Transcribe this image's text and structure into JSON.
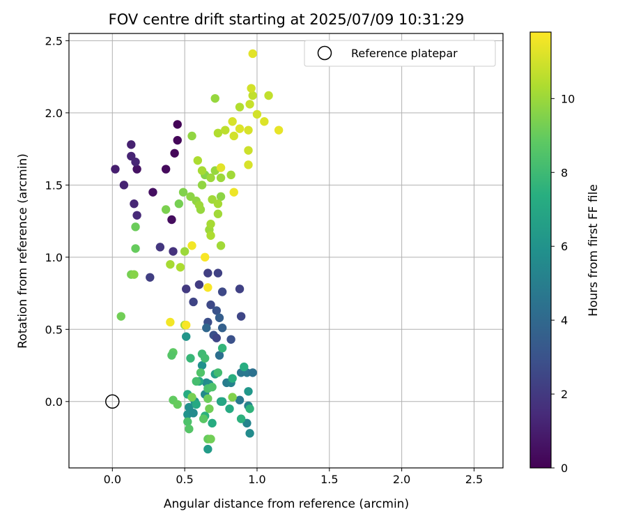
{
  "chart_data": {
    "type": "scatter",
    "title": "FOV centre drift starting at 2025/07/09 10:31:29",
    "xlabel": "Angular distance from reference (arcmin)",
    "ylabel": "Rotation from reference (arcmin)",
    "xlim": [
      -0.3,
      2.7
    ],
    "ylim": [
      -0.46,
      2.55
    ],
    "xticks": [
      "0.0",
      "0.5",
      "1.0",
      "1.5",
      "2.0",
      "2.5"
    ],
    "yticks": [
      "0.0",
      "0.5",
      "1.0",
      "1.5",
      "2.0",
      "2.5"
    ],
    "grid": true,
    "colormap": "viridis",
    "colorbar": {
      "label": "Hours from first FF file",
      "range": [
        0,
        11.8
      ],
      "ticks": [
        "0",
        "2",
        "4",
        "6",
        "8",
        "10"
      ]
    },
    "legend": {
      "placement": "top-right",
      "entries": [
        "Reference platepar"
      ]
    },
    "reference_point": {
      "x": 0.0,
      "y": 0.0
    },
    "points": [
      {
        "x": 0.45,
        "y": 1.92,
        "c": 0.1
      },
      {
        "x": 0.43,
        "y": 1.72,
        "c": 0.2
      },
      {
        "x": 0.45,
        "y": 1.81,
        "c": 0.2
      },
      {
        "x": 0.37,
        "y": 1.61,
        "c": 0.3
      },
      {
        "x": 0.28,
        "y": 1.45,
        "c": 0.5
      },
      {
        "x": 0.17,
        "y": 1.61,
        "c": 0.6
      },
      {
        "x": 0.41,
        "y": 1.26,
        "c": 0.4
      },
      {
        "x": 0.02,
        "y": 1.61,
        "c": 1.0
      },
      {
        "x": 0.13,
        "y": 1.78,
        "c": 1.1
      },
      {
        "x": 0.13,
        "y": 1.7,
        "c": 1.2
      },
      {
        "x": 0.16,
        "y": 1.66,
        "c": 1.3
      },
      {
        "x": 0.08,
        "y": 1.5,
        "c": 1.2
      },
      {
        "x": 0.15,
        "y": 1.37,
        "c": 1.3
      },
      {
        "x": 0.17,
        "y": 1.29,
        "c": 1.4
      },
      {
        "x": 0.33,
        "y": 1.07,
        "c": 1.9
      },
      {
        "x": 0.42,
        "y": 1.04,
        "c": 1.7
      },
      {
        "x": 0.26,
        "y": 0.86,
        "c": 2.2
      },
      {
        "x": 0.51,
        "y": 0.78,
        "c": 2.0
      },
      {
        "x": 0.6,
        "y": 0.81,
        "c": 2.1
      },
      {
        "x": 0.56,
        "y": 0.69,
        "c": 2.4
      },
      {
        "x": 0.66,
        "y": 0.89,
        "c": 2.2
      },
      {
        "x": 0.73,
        "y": 0.89,
        "c": 2.3
      },
      {
        "x": 0.88,
        "y": 0.78,
        "c": 2.3
      },
      {
        "x": 0.76,
        "y": 0.76,
        "c": 2.6
      },
      {
        "x": 0.89,
        "y": 0.59,
        "c": 2.5
      },
      {
        "x": 0.68,
        "y": 0.67,
        "c": 2.6
      },
      {
        "x": 0.66,
        "y": 0.55,
        "c": 2.8
      },
      {
        "x": 0.72,
        "y": 0.63,
        "c": 3.0
      },
      {
        "x": 0.7,
        "y": 0.46,
        "c": 2.9
      },
      {
        "x": 0.72,
        "y": 0.44,
        "c": 2.5
      },
      {
        "x": 0.82,
        "y": 0.43,
        "c": 2.9
      },
      {
        "x": 0.74,
        "y": 0.58,
        "c": 3.5
      },
      {
        "x": 0.76,
        "y": 0.51,
        "c": 3.6
      },
      {
        "x": 0.65,
        "y": 0.51,
        "c": 3.9
      },
      {
        "x": 0.74,
        "y": 0.32,
        "c": 4.3
      },
      {
        "x": 0.89,
        "y": 0.2,
        "c": 4.6
      },
      {
        "x": 0.93,
        "y": 0.2,
        "c": 4.7
      },
      {
        "x": 0.97,
        "y": 0.2,
        "c": 4.4
      },
      {
        "x": 0.79,
        "y": 0.13,
        "c": 4.9
      },
      {
        "x": 0.82,
        "y": 0.13,
        "c": 5.2
      },
      {
        "x": 0.88,
        "y": 0.01,
        "c": 4.7
      },
      {
        "x": 0.94,
        "y": -0.03,
        "c": 5.2
      },
      {
        "x": 0.93,
        "y": -0.15,
        "c": 5.3
      },
      {
        "x": 0.95,
        "y": -0.22,
        "c": 5.6
      },
      {
        "x": 0.65,
        "y": 0.13,
        "c": 5.5
      },
      {
        "x": 0.67,
        "y": 0.12,
        "c": 5.7
      },
      {
        "x": 0.64,
        "y": 0.05,
        "c": 5.6
      },
      {
        "x": 0.62,
        "y": 0.25,
        "c": 5.9
      },
      {
        "x": 0.53,
        "y": -0.04,
        "c": 5.8
      },
      {
        "x": 0.52,
        "y": -0.09,
        "c": 6.0
      },
      {
        "x": 0.56,
        "y": -0.08,
        "c": 5.6
      },
      {
        "x": 0.57,
        "y": 0.0,
        "c": 5.9
      },
      {
        "x": 0.51,
        "y": 0.45,
        "c": 6.1
      },
      {
        "x": 0.94,
        "y": 0.07,
        "c": 6.2
      },
      {
        "x": 0.66,
        "y": -0.33,
        "c": 6.4
      },
      {
        "x": 0.71,
        "y": 0.19,
        "c": 6.5
      },
      {
        "x": 0.75,
        "y": 0.0,
        "c": 6.7
      },
      {
        "x": 0.76,
        "y": 0.0,
        "c": 6.9
      },
      {
        "x": 0.6,
        "y": 0.14,
        "c": 7.0
      },
      {
        "x": 0.58,
        "y": -0.02,
        "c": 7.1
      },
      {
        "x": 0.52,
        "y": 0.05,
        "c": 7.2
      },
      {
        "x": 0.91,
        "y": 0.24,
        "c": 7.3
      },
      {
        "x": 0.83,
        "y": 0.16,
        "c": 7.4
      },
      {
        "x": 0.81,
        "y": -0.05,
        "c": 7.1
      },
      {
        "x": 0.89,
        "y": -0.12,
        "c": 7.5
      },
      {
        "x": 0.95,
        "y": -0.05,
        "c": 7.6
      },
      {
        "x": 0.64,
        "y": -0.1,
        "c": 7.5
      },
      {
        "x": 0.69,
        "y": -0.15,
        "c": 7.2
      },
      {
        "x": 0.76,
        "y": 0.37,
        "c": 7.7
      },
      {
        "x": 0.54,
        "y": 0.3,
        "c": 7.8
      },
      {
        "x": 0.62,
        "y": 0.33,
        "c": 8.0
      },
      {
        "x": 0.73,
        "y": 0.2,
        "c": 8.1
      },
      {
        "x": 0.64,
        "y": 0.3,
        "c": 8.1
      },
      {
        "x": 0.58,
        "y": 0.14,
        "c": 8.2
      },
      {
        "x": 0.66,
        "y": 0.09,
        "c": 8.3
      },
      {
        "x": 0.69,
        "y": 0.1,
        "c": 8.4
      },
      {
        "x": 0.61,
        "y": 0.2,
        "c": 8.5
      },
      {
        "x": 0.52,
        "y": -0.14,
        "c": 8.4
      },
      {
        "x": 0.53,
        "y": -0.19,
        "c": 8.6
      },
      {
        "x": 0.63,
        "y": -0.12,
        "c": 8.7
      },
      {
        "x": 0.42,
        "y": 0.34,
        "c": 8.8
      },
      {
        "x": 0.41,
        "y": 0.32,
        "c": 8.6
      },
      {
        "x": 0.42,
        "y": 0.01,
        "c": 8.9
      },
      {
        "x": 0.45,
        "y": -0.02,
        "c": 9.0
      },
      {
        "x": 0.66,
        "y": 0.02,
        "c": 9.1
      },
      {
        "x": 0.67,
        "y": -0.05,
        "c": 9.2
      },
      {
        "x": 0.66,
        "y": -0.26,
        "c": 9.0
      },
      {
        "x": 0.68,
        "y": -0.26,
        "c": 9.2
      },
      {
        "x": 0.83,
        "y": 0.03,
        "c": 9.5
      },
      {
        "x": 0.55,
        "y": 0.03,
        "c": 9.3
      },
      {
        "x": 0.06,
        "y": 0.59,
        "c": 9.2
      },
      {
        "x": 0.16,
        "y": 1.06,
        "c": 9.0
      },
      {
        "x": 0.13,
        "y": 0.88,
        "c": 9.3
      },
      {
        "x": 0.15,
        "y": 0.88,
        "c": 9.6
      },
      {
        "x": 0.16,
        "y": 1.21,
        "c": 9.1
      },
      {
        "x": 0.37,
        "y": 1.33,
        "c": 9.4
      },
      {
        "x": 0.46,
        "y": 1.37,
        "c": 9.3
      },
      {
        "x": 0.49,
        "y": 1.45,
        "c": 9.5
      },
      {
        "x": 0.54,
        "y": 1.42,
        "c": 9.7
      },
      {
        "x": 0.58,
        "y": 1.39,
        "c": 9.8
      },
      {
        "x": 0.61,
        "y": 1.33,
        "c": 9.9
      },
      {
        "x": 0.6,
        "y": 1.36,
        "c": 10.0
      },
      {
        "x": 0.62,
        "y": 1.5,
        "c": 9.8
      },
      {
        "x": 0.64,
        "y": 1.57,
        "c": 9.6
      },
      {
        "x": 0.68,
        "y": 1.55,
        "c": 10.0
      },
      {
        "x": 0.71,
        "y": 1.6,
        "c": 9.9
      },
      {
        "x": 0.69,
        "y": 1.4,
        "c": 10.1
      },
      {
        "x": 0.75,
        "y": 1.42,
        "c": 9.7
      },
      {
        "x": 0.73,
        "y": 1.37,
        "c": 10.2
      },
      {
        "x": 0.75,
        "y": 1.55,
        "c": 10.0
      },
      {
        "x": 0.82,
        "y": 1.57,
        "c": 10.1
      },
      {
        "x": 0.67,
        "y": 1.19,
        "c": 10.0
      },
      {
        "x": 0.68,
        "y": 1.23,
        "c": 10.2
      },
      {
        "x": 0.73,
        "y": 1.3,
        "c": 10.1
      },
      {
        "x": 0.68,
        "y": 1.15,
        "c": 10.3
      },
      {
        "x": 0.75,
        "y": 1.08,
        "c": 10.1
      },
      {
        "x": 0.4,
        "y": 0.95,
        "c": 10.2
      },
      {
        "x": 0.5,
        "y": 1.04,
        "c": 10.0
      },
      {
        "x": 0.47,
        "y": 0.93,
        "c": 10.3
      },
      {
        "x": 0.5,
        "y": 0.53,
        "c": 10.1
      },
      {
        "x": 0.59,
        "y": 1.67,
        "c": 10.3
      },
      {
        "x": 0.62,
        "y": 1.6,
        "c": 10.2
      },
      {
        "x": 0.55,
        "y": 1.84,
        "c": 9.8
      },
      {
        "x": 0.71,
        "y": 2.1,
        "c": 9.9
      },
      {
        "x": 0.73,
        "y": 1.86,
        "c": 10.4
      },
      {
        "x": 0.78,
        "y": 1.88,
        "c": 10.6
      },
      {
        "x": 0.88,
        "y": 2.04,
        "c": 10.4
      },
      {
        "x": 0.95,
        "y": 2.06,
        "c": 10.8
      },
      {
        "x": 0.97,
        "y": 2.12,
        "c": 10.7
      },
      {
        "x": 0.96,
        "y": 2.17,
        "c": 11.0
      },
      {
        "x": 1.08,
        "y": 2.12,
        "c": 10.7
      },
      {
        "x": 1.0,
        "y": 1.99,
        "c": 11.0
      },
      {
        "x": 1.05,
        "y": 1.94,
        "c": 11.2
      },
      {
        "x": 0.83,
        "y": 1.94,
        "c": 11.1
      },
      {
        "x": 0.84,
        "y": 1.84,
        "c": 11.0
      },
      {
        "x": 0.88,
        "y": 1.89,
        "c": 11.2
      },
      {
        "x": 0.94,
        "y": 1.88,
        "c": 11.1
      },
      {
        "x": 0.94,
        "y": 1.74,
        "c": 10.9
      },
      {
        "x": 0.94,
        "y": 1.64,
        "c": 11.1
      },
      {
        "x": 1.15,
        "y": 1.88,
        "c": 11.4
      },
      {
        "x": 0.97,
        "y": 2.41,
        "c": 11.3
      },
      {
        "x": 0.75,
        "y": 1.62,
        "c": 11.3
      },
      {
        "x": 0.84,
        "y": 1.45,
        "c": 11.5
      },
      {
        "x": 0.55,
        "y": 1.08,
        "c": 11.6
      },
      {
        "x": 0.64,
        "y": 1.0,
        "c": 11.7
      },
      {
        "x": 0.66,
        "y": 0.79,
        "c": 11.7
      },
      {
        "x": 0.4,
        "y": 0.55,
        "c": 11.6
      },
      {
        "x": 0.51,
        "y": 0.53,
        "c": 11.7
      }
    ]
  }
}
